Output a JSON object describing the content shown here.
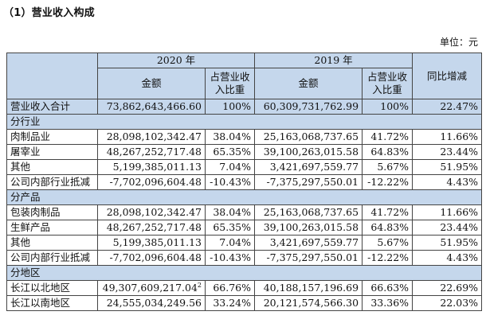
{
  "heading": "（1）营业收入构成",
  "unit": "单位：元",
  "header": {
    "year_2020": "2020 年",
    "year_2019": "2019 年",
    "amount": "金额",
    "share_line1": "占营业收",
    "share_line2": "入比重",
    "yoy": "同比增减"
  },
  "total": {
    "label": "营业收入合计",
    "amt_2020": "73,862,643,466.60",
    "pct_2020": "100%",
    "amt_2019": "60,309,731,762.99",
    "pct_2019": "100%",
    "yoy": "22.47%"
  },
  "sections": [
    {
      "title": "分行业",
      "rows": [
        {
          "label": "肉制品业",
          "amt_2020": "28,098,102,342.47",
          "pct_2020": "38.04%",
          "amt_2019": "25,163,068,737.65",
          "pct_2019": "41.72%",
          "yoy": "11.66%"
        },
        {
          "label": "屠宰业",
          "amt_2020": "48,267,252,717.48",
          "pct_2020": "65.35%",
          "amt_2019": "39,100,263,015.58",
          "pct_2019": "64.83%",
          "yoy": "23.44%"
        },
        {
          "label": "其他",
          "amt_2020": "5,199,385,011.13",
          "pct_2020": "7.04%",
          "amt_2019": "3,421,697,559.77",
          "pct_2019": "5.67%",
          "yoy": "51.95%"
        },
        {
          "label": "公司内部行业抵减",
          "amt_2020": "-7,702,096,604.48",
          "pct_2020": "-10.43%",
          "amt_2019": "-7,375,297,550.01",
          "pct_2019": "-12.22%",
          "yoy": "4.43%"
        }
      ]
    },
    {
      "title": "分产品",
      "rows": [
        {
          "label": "包装肉制品",
          "amt_2020": "28,098,102,342.47",
          "pct_2020": "38.04%",
          "amt_2019": "25,163,068,737.65",
          "pct_2019": "41.72%",
          "yoy": "11.66%"
        },
        {
          "label": "生鲜产品",
          "amt_2020": "48,267,252,717.48",
          "pct_2020": "65.35%",
          "amt_2019": "39,100,263,015.58",
          "pct_2019": "64.83%",
          "yoy": "23.44%"
        },
        {
          "label": "其他",
          "amt_2020": "5,199,385,011.13",
          "pct_2020": "7.04%",
          "amt_2019": "3,421,697,559.77",
          "pct_2019": "5.67%",
          "yoy": "51.95%"
        },
        {
          "label": "公司内部行业抵减",
          "amt_2020": "-7,702,096,604.48",
          "pct_2020": "-10.43%",
          "amt_2019": "-7,375,297,550.01",
          "pct_2019": "-12.22%",
          "yoy": "4.43%"
        }
      ]
    },
    {
      "title": "分地区",
      "rows": [
        {
          "label": "长江以北地区",
          "amt_2020": "49,307,609,217.04",
          "sup": "2",
          "pct_2020": "66.76%",
          "amt_2019": "40,188,157,196.69",
          "pct_2019": "66.63%",
          "yoy": "22.69%"
        },
        {
          "label": "长江以南地区",
          "amt_2020": "24,555,034,249.56",
          "pct_2020": "33.24%",
          "amt_2019": "20,121,574,566.30",
          "pct_2019": "33.36%",
          "yoy": "22.03%"
        }
      ]
    }
  ]
}
